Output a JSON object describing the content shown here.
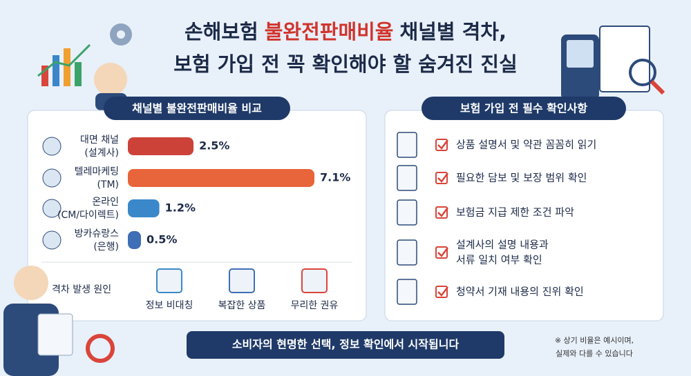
{
  "title": {
    "line1": [
      "손해보험",
      "불완전판매비율",
      "채널별 격차,"
    ],
    "line2": "보험 가입 전 꼭 확인해야 할 숨겨진 진실"
  },
  "chart_data": {
    "type": "bar",
    "title": "채널별 불완전판매비율 비교",
    "categories": [
      "대면 채널",
      "텔레마케팅",
      "온라인",
      "방카슈랑스"
    ],
    "category_notes": [
      "(설계사)",
      "(TM)",
      "(CM/다이렉트)",
      "(은행)"
    ],
    "values": [
      2.5,
      7.1,
      1.2,
      0.5
    ],
    "value_labels": [
      "2.5%",
      "7.1%",
      "1.2%",
      "0.5%"
    ],
    "colors": [
      "#cc4238",
      "#e8643a",
      "#3a88c9",
      "#3e6eb5"
    ],
    "label_colors": [
      "#c0392b",
      "#c0392b",
      "#1f3a68",
      "#1f3a68"
    ]
  },
  "causes": {
    "title": "격차 발생 원인",
    "items": [
      "정보 비대칭",
      "복잡한 상품",
      "무리한 권유"
    ]
  },
  "checklist": {
    "title": "보험 가입 전 필수 확인사항",
    "items": [
      [
        "상품 설명서 및 약관 꼼꼼히 읽기"
      ],
      [
        "필요한 담보 및 보장 범위 확인"
      ],
      [
        "보험금 지급 제한 조건 파악"
      ],
      [
        "설계사의 설명 내용과",
        "서류 일치 여부 확인"
      ],
      [
        "청약서 기재 내용의 진위 확인"
      ]
    ]
  },
  "footer": "소비자의 현명한 선택, 정보 확인에서 시작됩니다",
  "note": [
    "※ 상기 비율은 예시이며,",
    "실제와 다를 수 있습니다"
  ]
}
